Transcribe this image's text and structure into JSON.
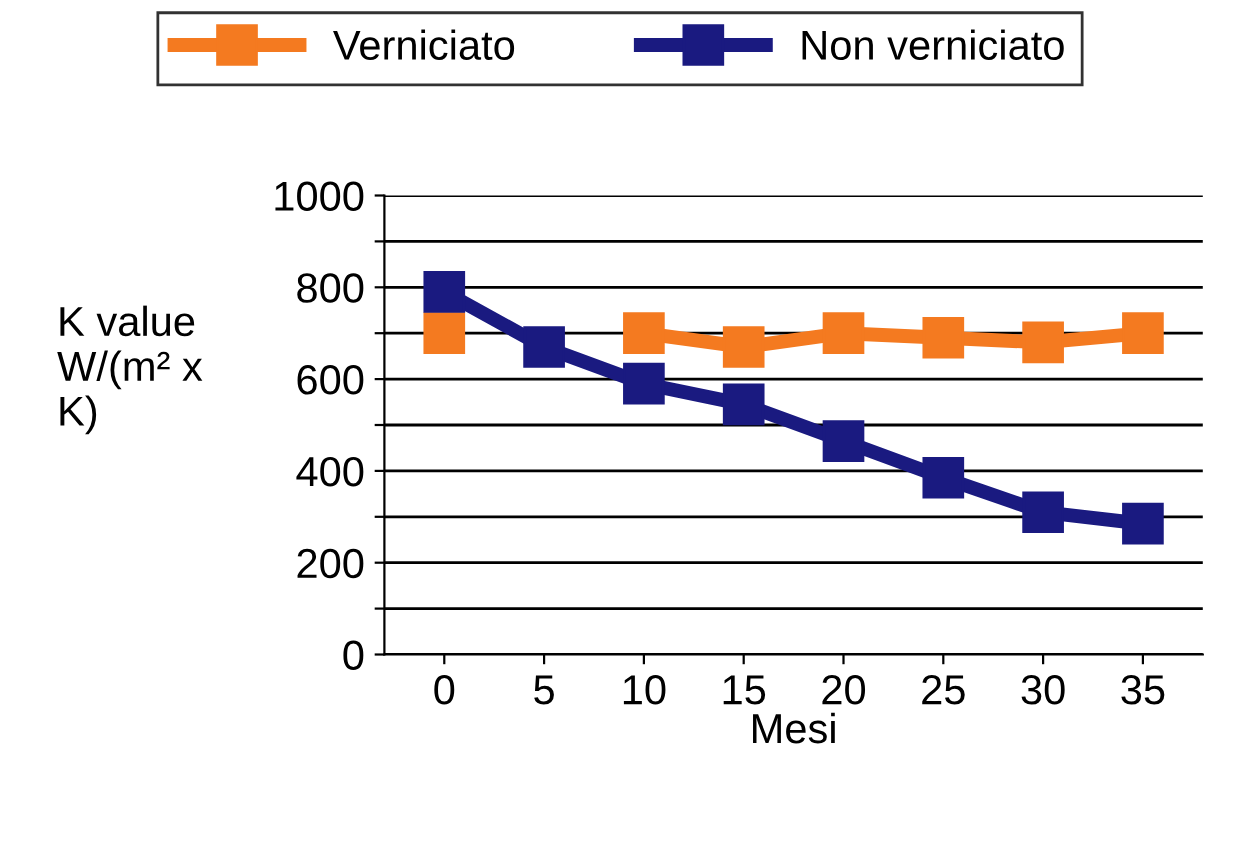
{
  "chart_data": {
    "type": "line",
    "xlabel": "Mesi",
    "ylabel": "K value\nW/(m² x\nK)",
    "categories": [
      "0",
      "5",
      "10",
      "15",
      "20",
      "25",
      "30",
      "35"
    ],
    "series": [
      {
        "name": "Verniciato",
        "color": "#f47a20",
        "values": [
          700,
          null,
          700,
          670,
          700,
          690,
          680,
          700
        ]
      },
      {
        "name": "Non verniciato",
        "color": "#1a1a80",
        "values": [
          790,
          670,
          590,
          545,
          465,
          385,
          310,
          285
        ]
      }
    ],
    "ylim": [
      0,
      1000
    ],
    "yticks": [
      0,
      {
        "value": 100,
        "label": null
      },
      200,
      {
        "value": 300,
        "label": null
      },
      400,
      {
        "value": 500,
        "label": null
      },
      600,
      {
        "value": 700,
        "label": null
      },
      800,
      {
        "value": 900,
        "label": null
      },
      1000
    ],
    "grid": "y",
    "legend": "top",
    "marker": "square",
    "line_style": "solid"
  }
}
